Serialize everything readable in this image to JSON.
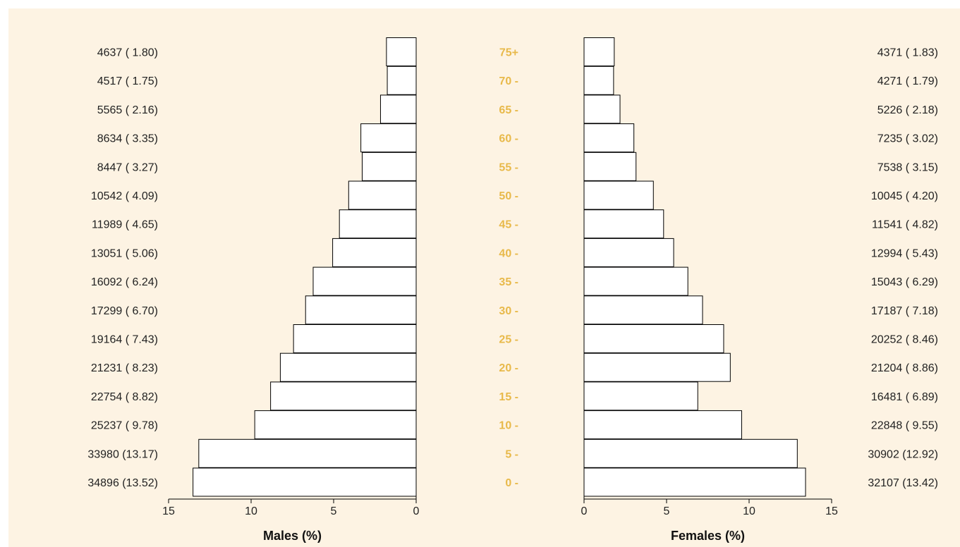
{
  "colors": {
    "background": "#fdf3e3",
    "bar_fill": "#ffffff",
    "bar_stroke": "#000000",
    "age_label": "#e8b94a",
    "text": "#222222"
  },
  "chart_data": {
    "type": "bar",
    "subtype": "population-pyramid",
    "orientation": "horizontal",
    "categories": [
      "75+",
      "70 -",
      "65 -",
      "60 -",
      "55 -",
      "50 -",
      "45 -",
      "40 -",
      "35 -",
      "30 -",
      "25 -",
      "20 -",
      "15 -",
      "10 -",
      "5 -",
      "0 -"
    ],
    "series": [
      {
        "name": "Males (%)",
        "values": [
          1.8,
          1.75,
          2.16,
          3.35,
          3.27,
          4.09,
          4.65,
          5.06,
          6.24,
          6.7,
          7.43,
          8.23,
          8.82,
          9.78,
          13.17,
          13.52
        ],
        "counts": [
          4637,
          4517,
          5565,
          8634,
          8447,
          10542,
          11989,
          13051,
          16092,
          17299,
          19164,
          21231,
          22754,
          25237,
          33980,
          34896
        ],
        "labels": [
          "4637 ( 1.80)",
          "4517 ( 1.75)",
          "5565 ( 2.16)",
          "8634 ( 3.35)",
          "8447 ( 3.27)",
          "10542 ( 4.09)",
          "11989 ( 4.65)",
          "13051 ( 5.06)",
          "16092 ( 6.24)",
          "17299 ( 6.70)",
          "19164 ( 7.43)",
          "21231 ( 8.23)",
          "22754 ( 8.82)",
          "25237 ( 9.78)",
          "33980 (13.17)",
          "34896 (13.52)"
        ]
      },
      {
        "name": "Females (%)",
        "values": [
          1.83,
          1.79,
          2.18,
          3.02,
          3.15,
          4.2,
          4.82,
          5.43,
          6.29,
          7.18,
          8.46,
          8.86,
          6.89,
          9.55,
          12.92,
          13.42
        ],
        "counts": [
          4371,
          4271,
          5226,
          7235,
          7538,
          10045,
          11541,
          12994,
          15043,
          17187,
          20252,
          21204,
          16481,
          22848,
          30902,
          32107
        ],
        "labels": [
          "4371 ( 1.83)",
          "4271 ( 1.79)",
          "5226 ( 2.18)",
          "7235 ( 3.02)",
          "7538 ( 3.15)",
          "10045 ( 4.20)",
          "11541 ( 4.82)",
          "12994 ( 5.43)",
          "15043 ( 6.29)",
          "17187 ( 7.18)",
          "20252 ( 8.46)",
          "21204 ( 8.86)",
          "16481 ( 6.89)",
          "22848 ( 9.55)",
          "30902 (12.92)",
          "32107 (13.42)"
        ]
      }
    ],
    "male_axis": {
      "label": "Males (%)",
      "ticks": [
        "15",
        "10",
        "5",
        "0"
      ],
      "range": [
        0,
        15
      ]
    },
    "female_axis": {
      "label": "Females (%)",
      "ticks": [
        "0",
        "5",
        "10",
        "15"
      ],
      "range": [
        0,
        15
      ]
    },
    "grid": false
  }
}
